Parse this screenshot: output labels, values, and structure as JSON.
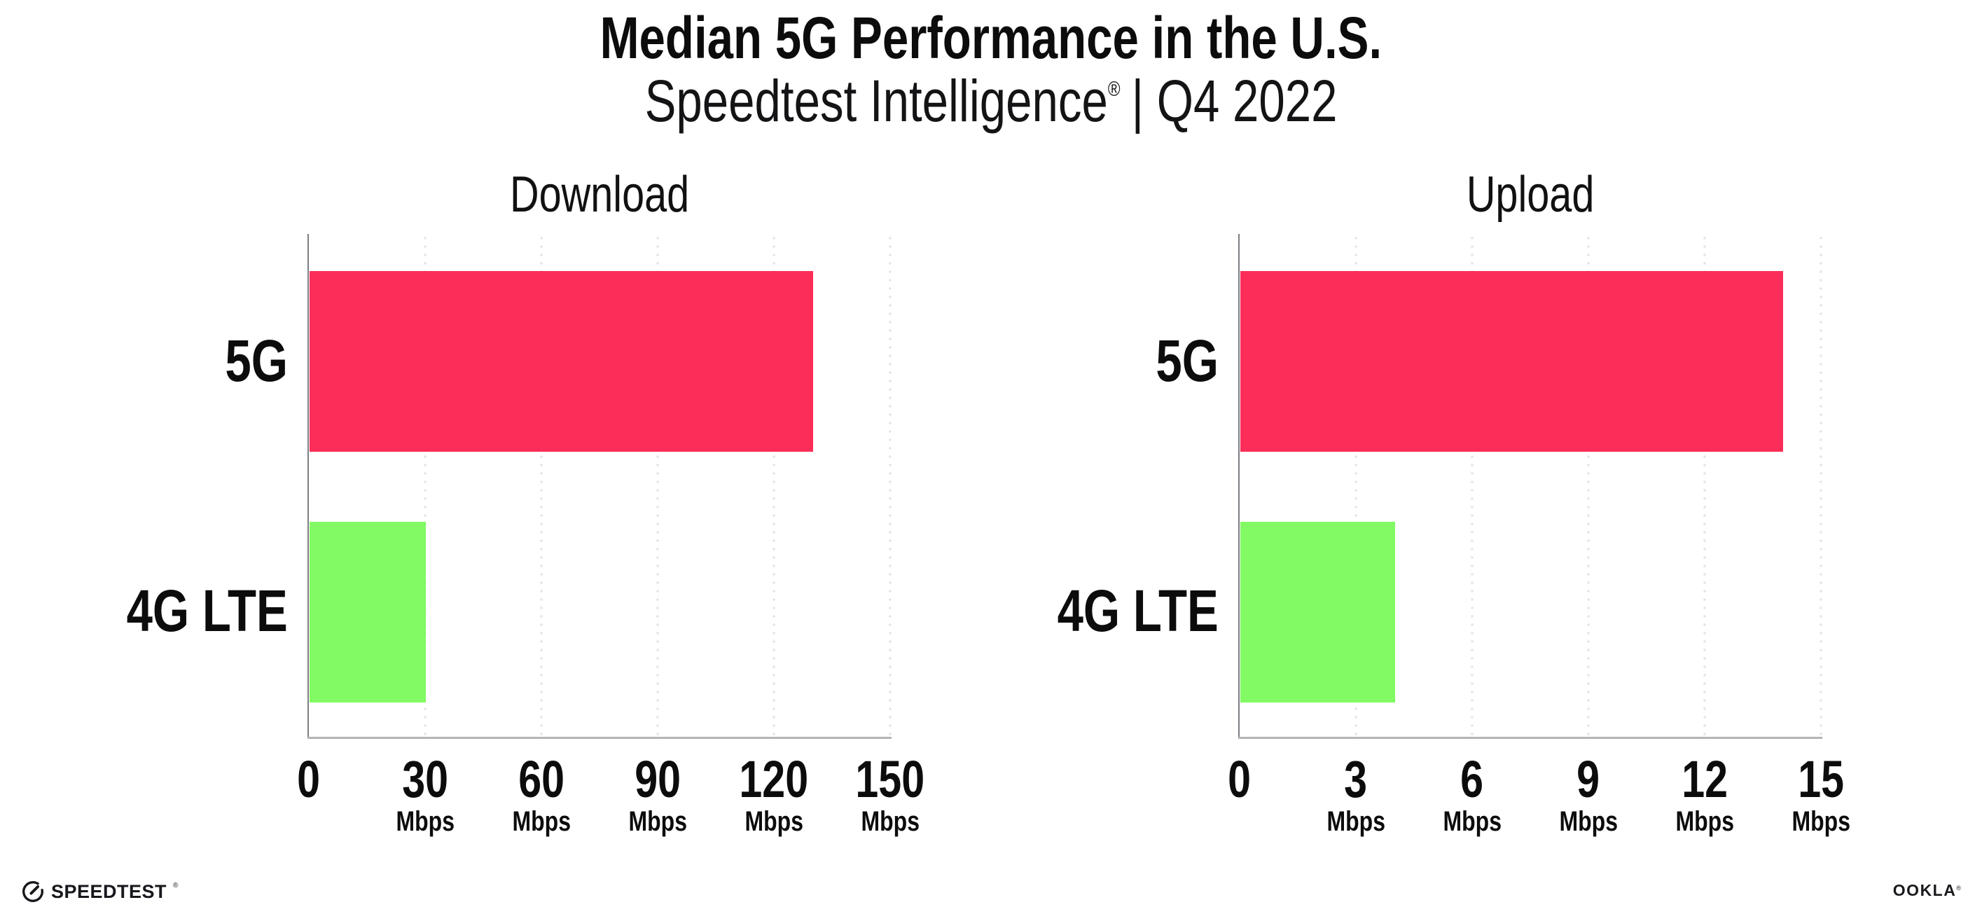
{
  "header": {
    "title": "Median 5G Performance in the U.S.",
    "subtitle_brand": "Speedtest Intelligence",
    "subtitle_reg": "®",
    "subtitle_rest": "| Q4 2022"
  },
  "chart_data": [
    {
      "type": "bar",
      "orientation": "horizontal",
      "title": "Download",
      "categories": [
        "5G",
        "4G LTE"
      ],
      "values": [
        130,
        30
      ],
      "unit": "Mbps",
      "xlabel": "",
      "ylabel": "",
      "xlim": [
        0,
        150
      ],
      "xticks": [
        0,
        30,
        60,
        90,
        120,
        150
      ],
      "bar_colors": [
        "#FC2D58",
        "#81FA63"
      ],
      "grid": "vertical-dotted",
      "legend_position": "none"
    },
    {
      "type": "bar",
      "orientation": "horizontal",
      "title": "Upload",
      "categories": [
        "5G",
        "4G LTE"
      ],
      "values": [
        14,
        4
      ],
      "unit": "Mbps",
      "xlabel": "",
      "ylabel": "",
      "xlim": [
        0,
        15
      ],
      "xticks": [
        0,
        3,
        6,
        9,
        12,
        15
      ],
      "bar_colors": [
        "#FC2D58",
        "#81FA63"
      ],
      "grid": "vertical-dotted",
      "legend_position": "none"
    }
  ],
  "footer": {
    "speedtest_label": "SPEEDTEST",
    "speedtest_mark": "®",
    "ookla_label": "OOKLA",
    "ookla_mark": "®"
  },
  "icons": {
    "speedtest_gauge": "speedtest-gauge-icon"
  },
  "colors": {
    "bar_5g": "#FC2D58",
    "bar_4g_lte": "#81FA63",
    "gridline": "#E3E3EC",
    "x_axis": "#B4B4B8",
    "y_axis": "#7E7E84",
    "text": "#0C0C0D"
  }
}
